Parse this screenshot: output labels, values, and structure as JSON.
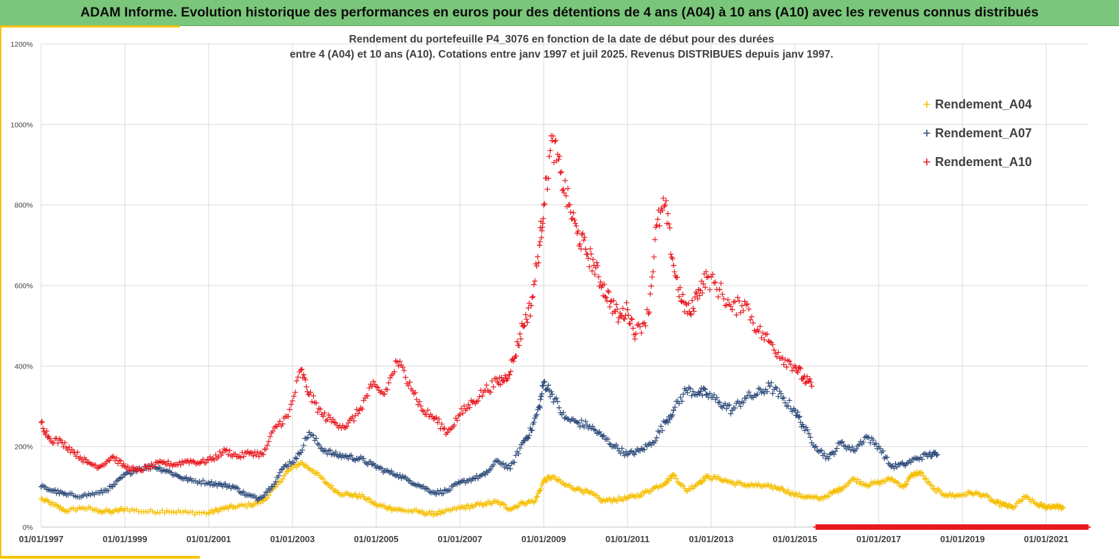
{
  "banner": {
    "title": "ADAM Informe. Evolution historique des performances en euros pour des détentions de 4 ans (A04) à 10 ans (A10) avec les revenus connus distribués"
  },
  "chart_data": {
    "type": "scatter",
    "title_line1": "Rendement du portefeuille P4_3076 en fonction de la date de début pour des durées",
    "title_line2": "entre 4 (A04) et 10 ans (A10). Cotations  entre janv 1997 et juil 2025. Revenus DISTRIBUES depuis janv 1997.",
    "xlabel": "",
    "ylabel": "",
    "x_unit": "year",
    "xlim": [
      1997.0,
      2022.0
    ],
    "ylim": [
      0,
      1200
    ],
    "y_ticks": [
      0,
      200,
      400,
      600,
      800,
      1000,
      1200
    ],
    "y_tick_labels": [
      "0%",
      "200%",
      "400%",
      "600%",
      "800%",
      "1000%",
      "1200%"
    ],
    "x_ticks": [
      1997,
      1999,
      2001,
      2003,
      2005,
      2007,
      2009,
      2011,
      2013,
      2015,
      2017,
      2019,
      2021
    ],
    "x_tick_labels": [
      "01/01/1997",
      "01/01/1999",
      "01/01/2001",
      "01/01/2003",
      "01/01/2005",
      "01/01/2007",
      "01/01/2009",
      "01/01/2011",
      "01/01/2013",
      "01/01/2015",
      "01/01/2017",
      "01/01/2019",
      "01/01/2021"
    ],
    "grid": true,
    "legend_position": "top-right",
    "marker": "plus",
    "series": [
      {
        "name": "Rendement_A04",
        "color": "#f5be00",
        "x": [
          1997.0,
          1997.3,
          1997.6,
          1998.0,
          1998.4,
          1998.7,
          1999.0,
          1999.5,
          2000.0,
          2000.5,
          2001.0,
          2001.3,
          2001.6,
          2002.0,
          2002.3,
          2002.6,
          2002.9,
          2003.2,
          2003.5,
          2003.8,
          2004.1,
          2004.4,
          2004.7,
          2005.0,
          2005.3,
          2005.6,
          2006.0,
          2006.3,
          2006.6,
          2007.0,
          2007.3,
          2007.6,
          2007.9,
          2008.2,
          2008.5,
          2008.8,
          2009.0,
          2009.2,
          2009.5,
          2009.8,
          2010.1,
          2010.4,
          2010.7,
          2011.0,
          2011.3,
          2011.6,
          2011.9,
          2012.1,
          2012.4,
          2012.7,
          2012.9,
          2013.2,
          2013.5,
          2013.8,
          2014.1,
          2014.4,
          2014.7,
          2015.0,
          2015.3,
          2015.6,
          2015.9,
          2016.1,
          2016.4,
          2016.7,
          2017.0,
          2017.3,
          2017.6,
          2017.8,
          2018.0,
          2018.3,
          2018.6,
          2018.9,
          2019.2,
          2019.5,
          2019.8,
          2020.0,
          2020.2,
          2020.5,
          2020.8,
          2021.0,
          2021.2,
          2021.4
        ],
        "y": [
          70,
          55,
          40,
          48,
          40,
          38,
          45,
          38,
          40,
          36,
          35,
          45,
          50,
          55,
          65,
          100,
          140,
          160,
          140,
          110,
          85,
          80,
          75,
          55,
          48,
          42,
          38,
          33,
          36,
          48,
          52,
          58,
          62,
          45,
          60,
          65,
          115,
          125,
          105,
          95,
          85,
          65,
          68,
          72,
          80,
          95,
          110,
          130,
          90,
          110,
          125,
          120,
          110,
          105,
          103,
          100,
          95,
          80,
          75,
          70,
          85,
          95,
          120,
          105,
          110,
          120,
          100,
          130,
          135,
          95,
          80,
          78,
          85,
          80,
          60,
          55,
          48,
          75,
          55,
          50,
          52,
          48
        ]
      },
      {
        "name": "Rendement_A07",
        "color": "#2e4b7a",
        "x": [
          1997.0,
          1997.3,
          1997.6,
          1998.0,
          1998.4,
          1998.7,
          1999.0,
          1999.3,
          1999.7,
          2000.0,
          2000.3,
          2000.6,
          2001.0,
          2001.3,
          2001.6,
          2001.9,
          2002.2,
          2002.5,
          2002.8,
          2003.1,
          2003.4,
          2003.7,
          2004.0,
          2004.3,
          2004.6,
          2004.9,
          2005.2,
          2005.5,
          2005.8,
          2006.1,
          2006.4,
          2006.7,
          2007.0,
          2007.3,
          2007.6,
          2007.9,
          2008.2,
          2008.5,
          2008.7,
          2008.9,
          2009.0,
          2009.2,
          2009.5,
          2009.8,
          2010.1,
          2010.4,
          2010.7,
          2011.0,
          2011.3,
          2011.6,
          2011.9,
          2012.1,
          2012.4,
          2012.7,
          2012.9,
          2013.2,
          2013.5,
          2013.8,
          2014.1,
          2014.4,
          2014.7,
          2015.0,
          2015.2,
          2015.5,
          2015.8,
          2016.1,
          2016.4,
          2016.7,
          2017.0,
          2017.3,
          2017.6,
          2017.9,
          2018.2,
          2018.4
        ],
        "y": [
          100,
          90,
          80,
          78,
          85,
          100,
          130,
          145,
          150,
          140,
          125,
          115,
          110,
          105,
          100,
          80,
          70,
          100,
          150,
          170,
          235,
          195,
          180,
          175,
          170,
          155,
          140,
          130,
          115,
          100,
          85,
          90,
          110,
          120,
          130,
          165,
          145,
          210,
          240,
          300,
          360,
          330,
          270,
          260,
          250,
          225,
          200,
          180,
          190,
          210,
          260,
          290,
          340,
          335,
          330,
          310,
          290,
          320,
          330,
          350,
          320,
          290,
          250,
          200,
          170,
          210,
          190,
          225,
          200,
          150,
          155,
          170,
          180,
          180
        ]
      },
      {
        "name": "Rendement_A10",
        "color": "#e8191f",
        "x": [
          1997.0,
          1997.2,
          1997.5,
          1997.8,
          1998.1,
          1998.4,
          1998.7,
          1999.0,
          1999.3,
          1999.6,
          1999.9,
          2000.2,
          2000.5,
          2000.8,
          2001.1,
          2001.4,
          2001.7,
          2002.0,
          2002.3,
          2002.6,
          2002.9,
          2003.2,
          2003.4,
          2003.7,
          2004.0,
          2004.3,
          2004.6,
          2004.9,
          2005.2,
          2005.5,
          2005.8,
          2006.1,
          2006.4,
          2006.7,
          2007.0,
          2007.3,
          2007.6,
          2007.9,
          2008.1,
          2008.3,
          2008.5,
          2008.7,
          2008.9,
          2009.0,
          2009.2,
          2009.4,
          2009.6,
          2009.8,
          2010.0,
          2010.2,
          2010.4,
          2010.6,
          2010.8,
          2011.0,
          2011.2,
          2011.5,
          2011.7,
          2011.9,
          2012.1,
          2012.3,
          2012.5,
          2012.7,
          2012.9,
          2013.2,
          2013.5,
          2013.8,
          2014.1,
          2014.4,
          2014.7,
          2015.0,
          2015.2,
          2015.4
        ],
        "y": [
          260,
          220,
          210,
          185,
          160,
          150,
          175,
          150,
          140,
          150,
          160,
          155,
          165,
          160,
          170,
          190,
          175,
          185,
          180,
          250,
          275,
          390,
          330,
          280,
          260,
          250,
          290,
          350,
          330,
          410,
          360,
          290,
          270,
          235,
          280,
          310,
          340,
          360,
          370,
          420,
          500,
          550,
          700,
          800,
          960,
          880,
          800,
          730,
          690,
          650,
          600,
          560,
          520,
          540,
          480,
          530,
          750,
          800,
          650,
          560,
          530,
          590,
          620,
          590,
          540,
          560,
          490,
          460,
          420,
          400,
          370,
          350
        ]
      },
      {
        "name": "",
        "color": "#e8191f",
        "x": [
          2015.5,
          2016.0,
          2016.5,
          2017.0,
          2017.5,
          2018.0,
          2018.5,
          2019.0,
          2019.5,
          2020.0,
          2020.5,
          2021.0,
          2021.5,
          2022.0
        ],
        "y": [
          0,
          0,
          0,
          0,
          0,
          0,
          0,
          0,
          0,
          0,
          0,
          0,
          0,
          0
        ]
      }
    ]
  }
}
